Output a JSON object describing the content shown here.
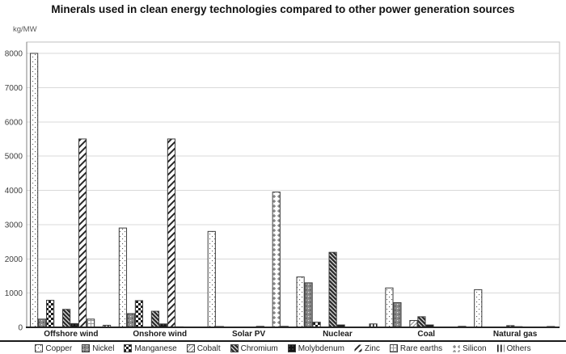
{
  "chart_data": {
    "type": "bar",
    "title": "Minerals used in clean energy technologies compared to other power generation sources",
    "ylabel": "kg/MW",
    "xlabel": "",
    "ylim": [
      0,
      8000
    ],
    "ytick_step": 1000,
    "grid": true,
    "legend_position": "bottom",
    "categories": [
      "Offshore wind",
      "Onshore wind",
      "Solar PV",
      "Nuclear",
      "Coal",
      "Natural gas"
    ],
    "series": [
      {
        "name": "Copper",
        "pattern": "dots-light",
        "values": [
          8000,
          2900,
          2800,
          1470,
          1150,
          1100
        ]
      },
      {
        "name": "Nickel",
        "pattern": "dots-dark",
        "values": [
          240,
          400,
          25,
          1300,
          720,
          0
        ]
      },
      {
        "name": "Manganese",
        "pattern": "checkerboard",
        "values": [
          790,
          780,
          0,
          150,
          0,
          0
        ]
      },
      {
        "name": "Cobalt",
        "pattern": "diagonal-light",
        "values": [
          0,
          0,
          0,
          0,
          200,
          0
        ]
      },
      {
        "name": "Chromium",
        "pattern": "diagonal-dark",
        "values": [
          525,
          470,
          0,
          2190,
          310,
          50
        ]
      },
      {
        "name": "Molybdenum",
        "pattern": "solid-black",
        "values": [
          110,
          100,
          0,
          70,
          70,
          20
        ]
      },
      {
        "name": "Zinc",
        "pattern": "diagonal-stripes-wide",
        "values": [
          5500,
          5500,
          30,
          10,
          0,
          0
        ]
      },
      {
        "name": "Rare earths",
        "pattern": "grid-light",
        "values": [
          240,
          15,
          0,
          0,
          0,
          0
        ]
      },
      {
        "name": "Silicon",
        "pattern": "plus-marks",
        "values": [
          0,
          0,
          3950,
          0,
          0,
          0
        ]
      },
      {
        "name": "Others",
        "pattern": "vertical-lines",
        "values": [
          60,
          10,
          30,
          100,
          30,
          25
        ]
      }
    ],
    "colors": {
      "grid_line": "#d9d9d9",
      "plot_border": "#bfbfbf",
      "axis_line": "#808080",
      "bottom_axis_line": "#262626",
      "bar_outline": "#3d3d3d",
      "text": "#1a1a1a"
    }
  }
}
